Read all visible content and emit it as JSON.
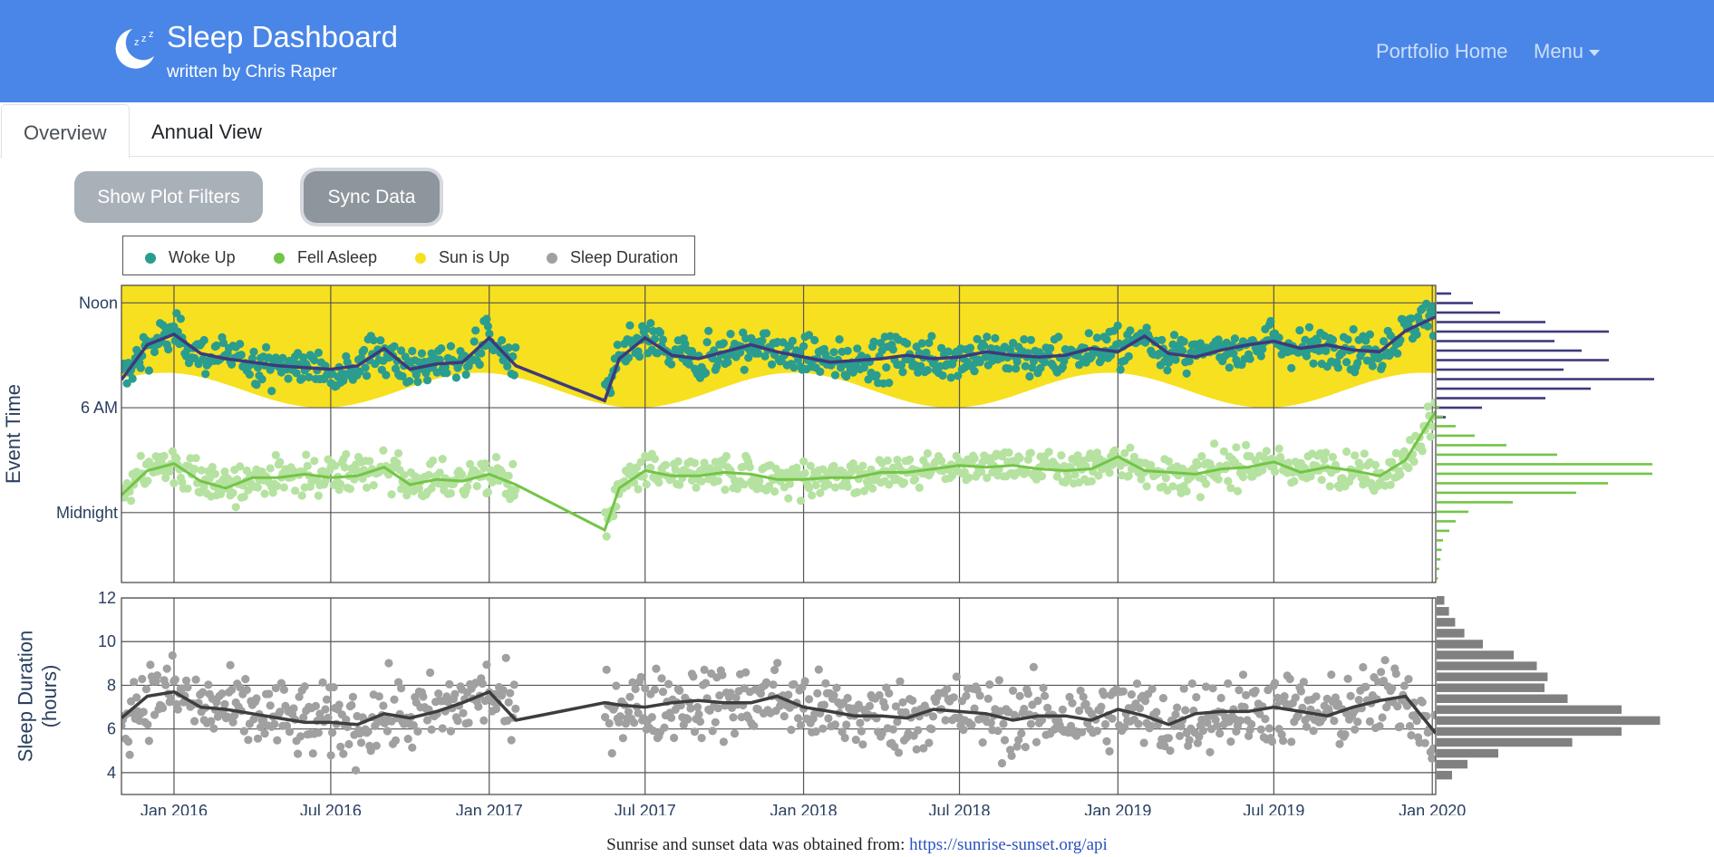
{
  "header": {
    "title": "Sleep Dashboard",
    "subtitle": "written by Chris Raper",
    "logo_icon": "moon-zzz-icon",
    "nav_links": [
      {
        "label": "Portfolio Home"
      },
      {
        "label": "Menu"
      }
    ],
    "colors": {
      "navbar": "#4a86e8"
    }
  },
  "tabs": [
    {
      "label": "Overview",
      "active": true
    },
    {
      "label": "Annual View",
      "active": false
    }
  ],
  "buttons": {
    "filters_label": "Show Plot Filters",
    "sync_label": "Sync Data"
  },
  "legend": [
    {
      "label": "Woke Up",
      "color": "#2a9d8f"
    },
    {
      "label": "Fell Asleep",
      "color": "#72c545"
    },
    {
      "label": "Sun is Up",
      "color": "#f7e01f"
    },
    {
      "label": "Sleep Duration",
      "color": "#a0a0a0"
    }
  ],
  "footer": {
    "text": "Sunrise and sunset data was obtained from:",
    "link": "https://sunrise-sunset.org/api"
  },
  "chart_data": [
    {
      "type": "scatter",
      "ylabel": "Event Time",
      "x_ticks": [
        "Jan 2016",
        "Jul 2016",
        "Jan 2017",
        "Jul 2017",
        "Jan 2018",
        "Jul 2018",
        "Jan 2019",
        "Jul 2019",
        "Jan 2020"
      ],
      "x_range": [
        "2015-11-01",
        "2020-01-05"
      ],
      "y_ticks": [
        "Noon",
        "6 AM",
        "Midnight"
      ],
      "y_tick_hours": [
        12,
        6,
        0
      ],
      "y_range_hours": [
        -4,
        13
      ],
      "data_gap": [
        "2017-02-01",
        "2017-05-15"
      ],
      "series": [
        {
          "name": "Woke Up",
          "color": "#2a9d8f",
          "trend_color": "#3e3a7a",
          "trend_dates": [
            "2015-11-01",
            "2015-12-01",
            "2016-01-01",
            "2016-02-01",
            "2016-03-01",
            "2016-04-01",
            "2016-05-01",
            "2016-06-01",
            "2016-07-01",
            "2016-08-01",
            "2016-09-01",
            "2016-10-01",
            "2016-11-01",
            "2016-12-01",
            "2017-01-01",
            "2017-02-01",
            "2017-05-15",
            "2017-06-01",
            "2017-07-01",
            "2017-08-01",
            "2017-09-01",
            "2017-10-01",
            "2017-11-01",
            "2017-12-01",
            "2018-01-01",
            "2018-02-01",
            "2018-03-01",
            "2018-04-01",
            "2018-05-01",
            "2018-06-01",
            "2018-07-01",
            "2018-08-01",
            "2018-09-01",
            "2018-10-01",
            "2018-11-01",
            "2018-12-01",
            "2019-01-01",
            "2019-02-01",
            "2019-03-01",
            "2019-04-01",
            "2019-05-01",
            "2019-06-01",
            "2019-07-01",
            "2019-08-01",
            "2019-09-01",
            "2019-10-01",
            "2019-11-01",
            "2019-12-01",
            "2020-01-05"
          ],
          "trend_hours": [
            7.6,
            9.6,
            10.2,
            9.1,
            8.8,
            8.6,
            8.4,
            8.3,
            8.2,
            8.4,
            9.4,
            8.2,
            8.5,
            8.6,
            10.0,
            8.4,
            6.4,
            8.8,
            10.0,
            9.0,
            8.8,
            9.2,
            9.6,
            9.2,
            8.9,
            8.6,
            8.7,
            8.8,
            9.0,
            8.8,
            8.9,
            9.2,
            9.0,
            8.9,
            9.0,
            9.4,
            9.2,
            10.1,
            9.1,
            8.9,
            9.3,
            9.6,
            9.8,
            9.4,
            9.6,
            9.3,
            9.2,
            10.4,
            11.2
          ],
          "histogram_bins": [
            "12:00",
            "11:30",
            "11:00",
            "10:30",
            "10:00",
            "9:30",
            "9:00",
            "8:30",
            "8:00",
            "7:30",
            "7:00",
            "6:30",
            "6:00",
            "5:30"
          ],
          "histogram_counts": [
            8,
            20,
            35,
            60,
            95,
            65,
            80,
            95,
            70,
            120,
            85,
            60,
            25,
            5
          ]
        },
        {
          "name": "Fell Asleep",
          "color": "#72c545",
          "scatter_color": "#b6e2a1",
          "trend_color": "#72c545",
          "trend_dates": [
            "2015-11-01",
            "2015-12-01",
            "2016-01-01",
            "2016-02-01",
            "2016-03-01",
            "2016-04-01",
            "2016-05-01",
            "2016-06-01",
            "2016-07-01",
            "2016-08-01",
            "2016-09-01",
            "2016-10-01",
            "2016-11-01",
            "2016-12-01",
            "2017-01-01",
            "2017-02-01",
            "2017-05-15",
            "2017-06-01",
            "2017-07-01",
            "2017-08-01",
            "2017-09-01",
            "2017-10-01",
            "2017-11-01",
            "2017-12-01",
            "2018-01-01",
            "2018-02-01",
            "2018-03-01",
            "2018-04-01",
            "2018-05-01",
            "2018-06-01",
            "2018-07-01",
            "2018-08-01",
            "2018-09-01",
            "2018-10-01",
            "2018-11-01",
            "2018-12-01",
            "2019-01-01",
            "2019-02-01",
            "2019-03-01",
            "2019-04-01",
            "2019-05-01",
            "2019-06-01",
            "2019-07-01",
            "2019-08-01",
            "2019-09-01",
            "2019-10-01",
            "2019-11-01",
            "2019-12-01",
            "2020-01-05"
          ],
          "trend_hours": [
            1.0,
            2.4,
            2.8,
            1.8,
            1.4,
            2.0,
            2.0,
            2.2,
            2.0,
            2.1,
            2.6,
            1.6,
            1.9,
            1.8,
            2.2,
            1.6,
            -1.0,
            1.4,
            2.4,
            2.1,
            2.1,
            2.3,
            2.2,
            1.9,
            1.9,
            2.0,
            2.0,
            2.3,
            2.3,
            2.5,
            2.7,
            2.6,
            2.7,
            2.5,
            2.4,
            2.5,
            3.2,
            2.4,
            2.3,
            2.2,
            2.5,
            2.6,
            2.9,
            2.3,
            2.6,
            2.4,
            2.1,
            3.0,
            5.8
          ],
          "histogram_bins": [
            "5:30",
            "5:00",
            "4:30",
            "4:00",
            "3:30",
            "3:00",
            "2:30",
            "2:00",
            "1:30",
            "1:00",
            "0:30",
            "0:00",
            "-0:30",
            "-1:00",
            "-1:30",
            "-2:00",
            "-2:30",
            "-3:00",
            "-3:30"
          ],
          "histogram_counts": [
            2,
            5,
            15,
            30,
            55,
            95,
            170,
            170,
            135,
            110,
            60,
            25,
            15,
            10,
            5,
            4,
            3,
            2,
            1
          ]
        },
        {
          "name": "Sun is Up",
          "color": "#f7e01f",
          "sunrise_hours_range": [
            6.0,
            8.0
          ],
          "sunset_hours_range": [
            16.5,
            21.0
          ]
        }
      ]
    },
    {
      "type": "scatter",
      "ylabel": "Sleep Duration (hours)",
      "x_ticks": [
        "Jan 2016",
        "Jul 2016",
        "Jan 2017",
        "Jul 2017",
        "Jan 2018",
        "Jul 2018",
        "Jan 2019",
        "Jul 2019",
        "Jan 2020"
      ],
      "x_range": [
        "2015-11-01",
        "2020-01-05"
      ],
      "y_ticks": [
        4,
        6,
        8,
        10,
        12
      ],
      "ylim": [
        3,
        12
      ],
      "series": [
        {
          "name": "Sleep Duration",
          "color": "#a0a0a0",
          "trend_color": "#3d3d3d",
          "trend_dates": [
            "2015-11-01",
            "2015-12-01",
            "2016-01-01",
            "2016-02-01",
            "2016-03-01",
            "2016-04-01",
            "2016-05-01",
            "2016-06-01",
            "2016-07-01",
            "2016-08-01",
            "2016-09-01",
            "2016-10-01",
            "2016-11-01",
            "2016-12-01",
            "2017-01-01",
            "2017-02-01",
            "2017-05-15",
            "2017-06-01",
            "2017-07-01",
            "2017-08-01",
            "2017-09-01",
            "2017-10-01",
            "2017-11-01",
            "2017-12-01",
            "2018-01-01",
            "2018-02-01",
            "2018-03-01",
            "2018-04-01",
            "2018-05-01",
            "2018-06-01",
            "2018-07-01",
            "2018-08-01",
            "2018-09-01",
            "2018-10-01",
            "2018-11-01",
            "2018-12-01",
            "2019-01-01",
            "2019-02-01",
            "2019-03-01",
            "2019-04-01",
            "2019-05-01",
            "2019-06-01",
            "2019-07-01",
            "2019-08-01",
            "2019-09-01",
            "2019-10-01",
            "2019-11-01",
            "2019-12-01",
            "2020-01-05"
          ],
          "trend_values": [
            6.5,
            7.5,
            7.7,
            7.0,
            6.9,
            6.7,
            6.5,
            6.3,
            6.3,
            6.2,
            6.7,
            6.5,
            6.8,
            7.2,
            7.7,
            6.4,
            7.2,
            7.1,
            7.0,
            7.2,
            7.3,
            7.2,
            7.2,
            7.5,
            7.0,
            6.8,
            6.6,
            6.6,
            6.5,
            6.9,
            6.8,
            6.7,
            6.4,
            6.6,
            6.6,
            6.4,
            6.9,
            6.6,
            6.2,
            6.7,
            6.8,
            6.8,
            7.0,
            6.8,
            6.6,
            7.0,
            7.3,
            7.5,
            5.8
          ],
          "histogram_bins": [
            12,
            11.5,
            11,
            10.5,
            10,
            9.5,
            9,
            8.5,
            8,
            7.5,
            7,
            6.5,
            6,
            5.5,
            5,
            4.5,
            4
          ],
          "histogram_counts": [
            5,
            8,
            12,
            18,
            30,
            50,
            65,
            72,
            70,
            85,
            120,
            145,
            120,
            88,
            40,
            20,
            10
          ]
        }
      ]
    }
  ]
}
